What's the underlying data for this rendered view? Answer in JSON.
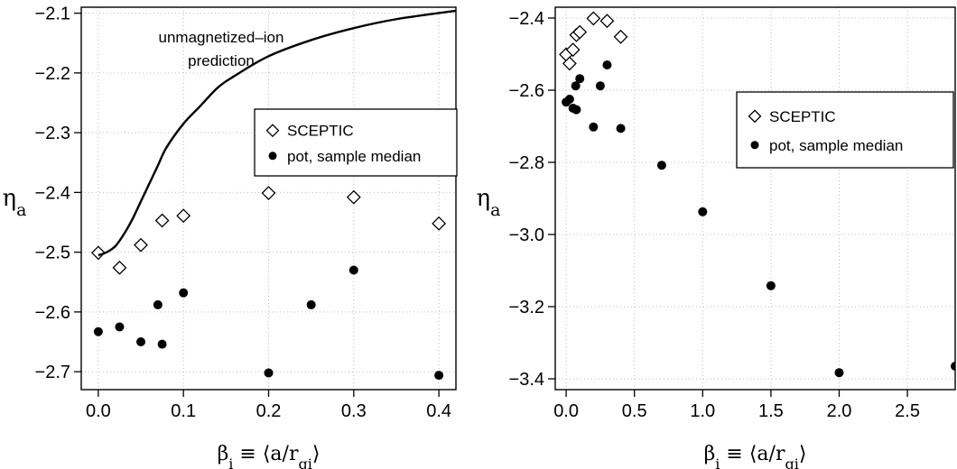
{
  "chart_data": [
    {
      "type": "scatter",
      "xlabel": "βi ≡ ⟨a/rgi⟩",
      "ylabel": "ηa",
      "xlim": [
        -0.02,
        0.42
      ],
      "ylim": [
        -2.73,
        -2.09
      ],
      "xticks": [
        "0.0",
        "0.1",
        "0.2",
        "0.3",
        "0.4"
      ],
      "yticks": [
        "−2.1",
        "−2.2",
        "−2.3",
        "−2.4",
        "−2.5",
        "−2.6",
        "−2.7"
      ],
      "grid": true,
      "legend_position": "right",
      "annotation": [
        "unmagnetized–ion",
        "prediction"
      ],
      "series": [
        {
          "name": "SCEPTIC",
          "marker": "diamond-open",
          "x": [
            0.0,
            0.025,
            0.05,
            0.075,
            0.1,
            0.2,
            0.3,
            0.4
          ],
          "y": [
            -2.501,
            -2.526,
            -2.488,
            -2.447,
            -2.439,
            -2.401,
            -2.408,
            -2.452
          ]
        },
        {
          "name": "pot, sample median",
          "marker": "circle-filled",
          "x": [
            0.0,
            0.025,
            0.05,
            0.07,
            0.075,
            0.1,
            0.2,
            0.25,
            0.3,
            0.4
          ],
          "y": [
            -2.633,
            -2.625,
            -2.65,
            -2.588,
            -2.654,
            -2.568,
            -2.702,
            -2.588,
            -2.53,
            -2.706
          ]
        },
        {
          "name": "",
          "marker": "line",
          "x": [
            0.0,
            0.01,
            0.02,
            0.03,
            0.04,
            0.05,
            0.06,
            0.07,
            0.08,
            0.1,
            0.12,
            0.14,
            0.16,
            0.2,
            0.25,
            0.3,
            0.35,
            0.42
          ],
          "y": [
            -2.505,
            -2.5,
            -2.49,
            -2.47,
            -2.445,
            -2.415,
            -2.385,
            -2.355,
            -2.325,
            -2.285,
            -2.255,
            -2.225,
            -2.205,
            -2.172,
            -2.145,
            -2.125,
            -2.11,
            -2.096
          ]
        }
      ]
    },
    {
      "type": "scatter",
      "xlabel": "βi ≡ ⟨a/rgi⟩",
      "ylabel": "ηa",
      "xlim": [
        -0.08,
        2.85
      ],
      "ylim": [
        -3.43,
        -2.37
      ],
      "xticks": [
        "0.0",
        "0.5",
        "1.0",
        "1.5",
        "2.0",
        "2.5"
      ],
      "yticks": [
        "−2.4",
        "−2.6",
        "−2.8",
        "−3.0",
        "−3.2",
        "−3.4"
      ],
      "grid": true,
      "legend_position": "right",
      "series": [
        {
          "name": "SCEPTIC",
          "marker": "diamond-open",
          "x": [
            0.0,
            0.025,
            0.05,
            0.075,
            0.1,
            0.2,
            0.3,
            0.4
          ],
          "y": [
            -2.501,
            -2.526,
            -2.488,
            -2.447,
            -2.439,
            -2.401,
            -2.408,
            -2.452
          ]
        },
        {
          "name": "pot, sample median",
          "marker": "circle-filled",
          "x": [
            0.0,
            0.025,
            0.05,
            0.07,
            0.075,
            0.1,
            0.2,
            0.25,
            0.3,
            0.4,
            0.7,
            1.0,
            1.5,
            2.0,
            2.85
          ],
          "y": [
            -2.633,
            -2.625,
            -2.65,
            -2.588,
            -2.654,
            -2.568,
            -2.702,
            -2.588,
            -2.53,
            -2.706,
            -2.808,
            -2.937,
            -3.142,
            -3.383,
            -3.365
          ]
        }
      ]
    }
  ]
}
